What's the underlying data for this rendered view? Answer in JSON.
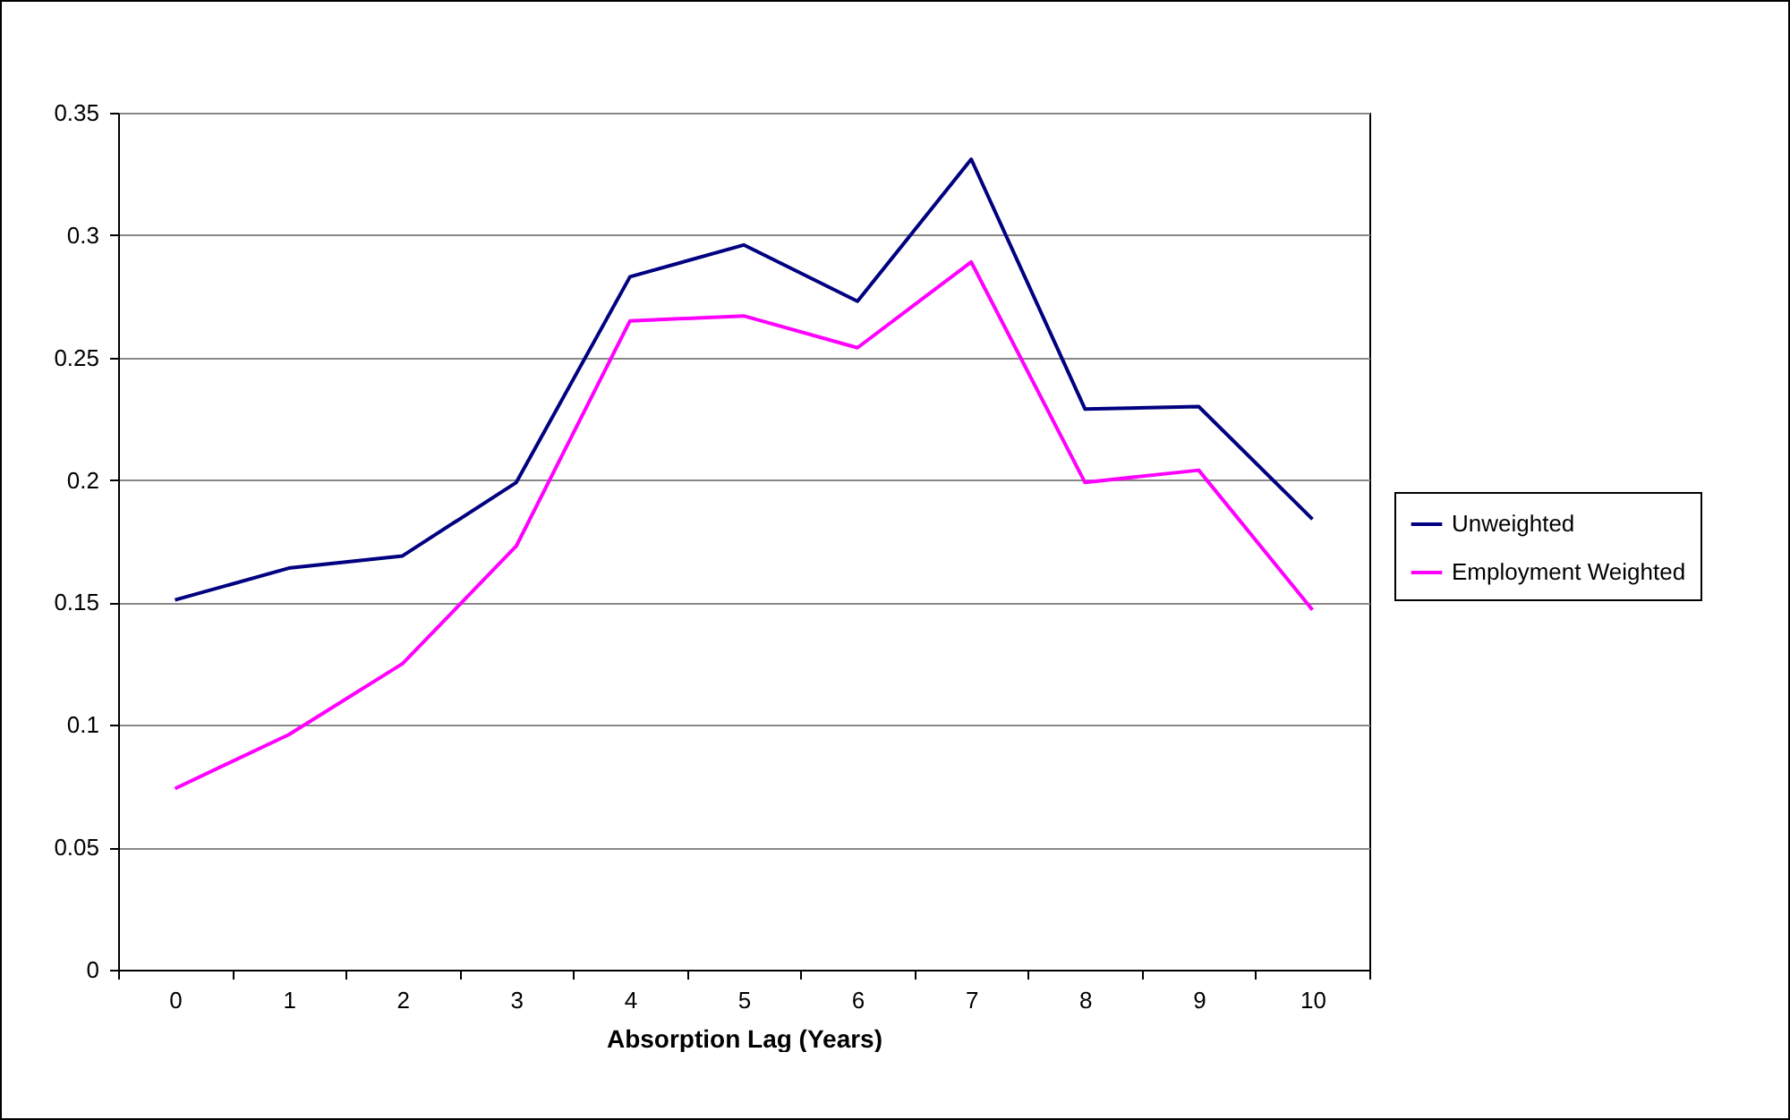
{
  "chart_data": {
    "type": "line",
    "xlabel": "Absorption Lag (Years)",
    "categories": [
      "0",
      "1",
      "2",
      "3",
      "4",
      "5",
      "6",
      "7",
      "8",
      "9",
      "10"
    ],
    "series": [
      {
        "name": "Unweighted",
        "color": "#000080",
        "values": [
          0.151,
          0.164,
          0.169,
          0.199,
          0.283,
          0.296,
          0.273,
          0.331,
          0.229,
          0.23,
          0.184
        ]
      },
      {
        "name": "Employment Weighted",
        "color": "#ff00ff",
        "values": [
          0.074,
          0.096,
          0.125,
          0.173,
          0.265,
          0.267,
          0.254,
          0.289,
          0.199,
          0.204,
          0.147
        ]
      }
    ],
    "ylim": [
      0,
      0.35
    ],
    "yticks": [
      0,
      0.05,
      0.1,
      0.15,
      0.2,
      0.25,
      0.3,
      0.35
    ],
    "grid": "y",
    "legend": "right",
    "marker": "none",
    "line_style": "solid"
  }
}
